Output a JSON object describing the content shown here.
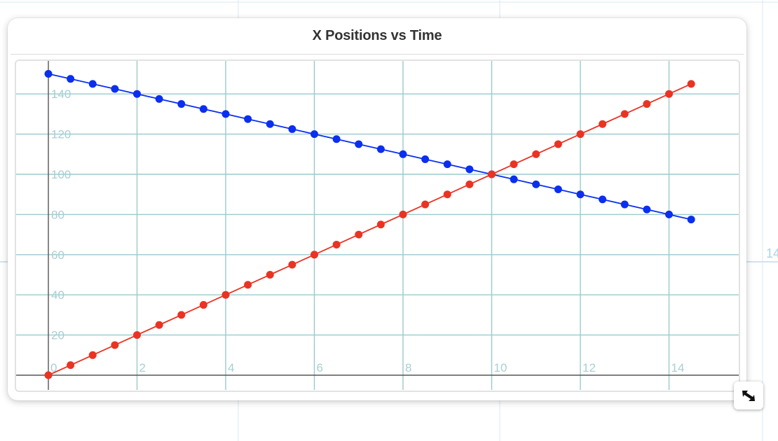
{
  "page": {
    "edge_label": "14"
  },
  "chart_data": {
    "type": "scatter",
    "title": "X Positions vs Time",
    "xlabel": "",
    "ylabel": "",
    "xlim": [
      0,
      15.5
    ],
    "ylim": [
      0,
      150
    ],
    "x_ticks": [
      "0",
      "2",
      "4",
      "6",
      "8",
      "10",
      "12",
      "14"
    ],
    "y_ticks": [
      "0",
      "20",
      "40",
      "60",
      "80",
      "100",
      "120",
      "140"
    ],
    "grid": true,
    "legend": "none",
    "connected": true,
    "x": [
      0,
      0.5,
      1,
      1.5,
      2,
      2.5,
      3,
      3.5,
      4,
      4.5,
      5,
      5.5,
      6,
      6.5,
      7,
      7.5,
      8,
      8.5,
      9,
      9.5,
      10,
      10.5,
      11,
      11.5,
      12,
      12.5,
      13,
      13.5,
      14,
      14.5
    ],
    "series": [
      {
        "color": "#0a2ff0",
        "values": [
          150,
          147.5,
          145,
          142.5,
          140,
          137.5,
          135,
          132.5,
          130,
          127.5,
          125,
          122.5,
          120,
          117.5,
          115,
          112.5,
          110,
          107.5,
          105,
          102.5,
          100,
          97.5,
          95,
          92.5,
          90,
          87.5,
          85,
          82.5,
          80,
          77.5
        ]
      },
      {
        "color": "#ea3323",
        "values": [
          0,
          5,
          10,
          15,
          20,
          25,
          30,
          35,
          40,
          45,
          50,
          55,
          60,
          65,
          70,
          75,
          80,
          85,
          90,
          95,
          100,
          105,
          110,
          115,
          120,
          125,
          130,
          135,
          140,
          145
        ]
      }
    ]
  },
  "colors": {
    "grid": "#9cc9cc",
    "axis": "#555555",
    "tick_label": "#a9cfd3",
    "background_grid": "#d5e8f2"
  },
  "icons": {
    "resize": "resize-arrow-icon"
  }
}
